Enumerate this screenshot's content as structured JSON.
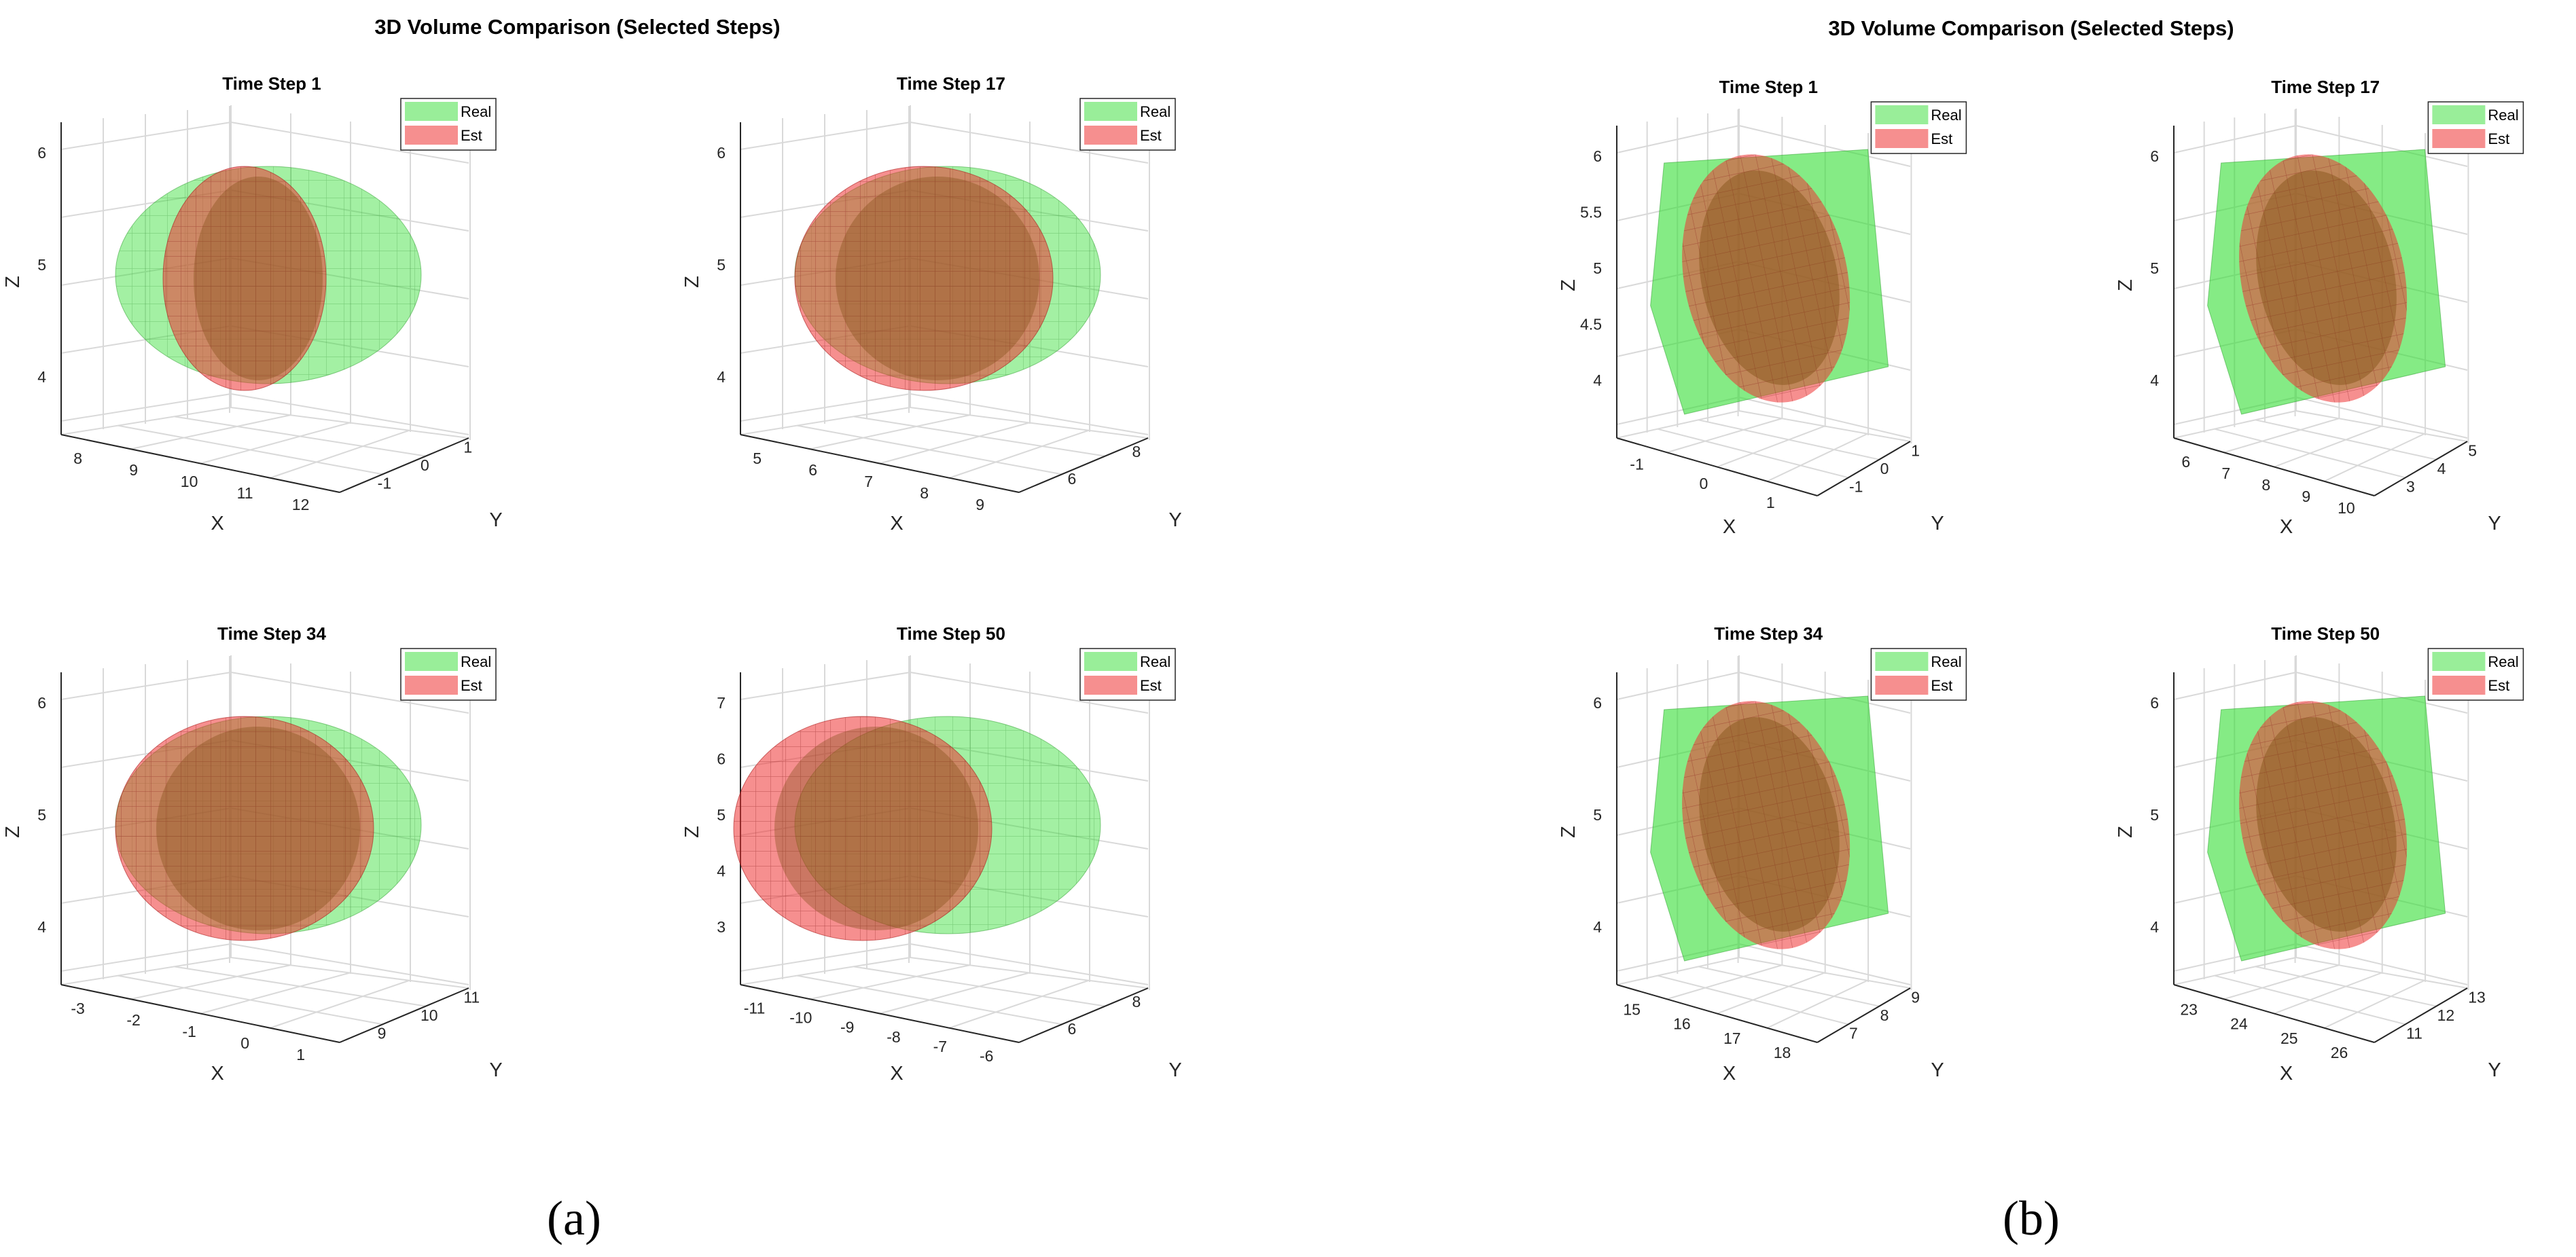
{
  "figures": [
    {
      "label": "(a)",
      "title": "3D Volume Comparison (Selected Steps)"
    },
    {
      "label": "(b)",
      "title": "3D Volume Comparison (Selected Steps)"
    }
  ],
  "legend": {
    "real": "Real",
    "est": "Est"
  },
  "colors": {
    "real": "#33dd33",
    "est": "#ee3333",
    "overlap": "#7a4a10",
    "axis": "#262626",
    "grid": "#d9d9d9"
  },
  "chart_data": [
    {
      "figure": "a",
      "type": "3d-surface",
      "title": "Time Step 1",
      "xlabel": "X",
      "ylabel": "Y",
      "zlabel": "Z",
      "xticks": [
        "8",
        "9",
        "10",
        "11",
        "12"
      ],
      "yticks": [
        "-1",
        "0",
        "1"
      ],
      "zticks": [
        "4",
        "5",
        "6"
      ],
      "series": [
        {
          "name": "Real",
          "shape": "ellipsoid"
        },
        {
          "name": "Est",
          "shape": "ellipsoid"
        }
      ]
    },
    {
      "figure": "a",
      "type": "3d-surface",
      "title": "Time Step 17",
      "xlabel": "X",
      "ylabel": "Y",
      "zlabel": "Z",
      "xticks": [
        "5",
        "6",
        "7",
        "8",
        "9"
      ],
      "yticks": [
        "6",
        "8"
      ],
      "zticks": [
        "4",
        "5",
        "6"
      ],
      "series": [
        {
          "name": "Real",
          "shape": "ellipsoid"
        },
        {
          "name": "Est",
          "shape": "ellipsoid"
        }
      ]
    },
    {
      "figure": "a",
      "type": "3d-surface",
      "title": "Time Step 34",
      "xlabel": "X",
      "ylabel": "Y",
      "zlabel": "Z",
      "xticks": [
        "-3",
        "-2",
        "-1",
        "0",
        "1"
      ],
      "yticks": [
        "9",
        "10",
        "11"
      ],
      "zticks": [
        "4",
        "5",
        "6"
      ],
      "series": [
        {
          "name": "Real",
          "shape": "ellipsoid"
        },
        {
          "name": "Est",
          "shape": "ellipsoid"
        }
      ]
    },
    {
      "figure": "a",
      "type": "3d-surface",
      "title": "Time Step 50",
      "xlabel": "X",
      "ylabel": "Y",
      "zlabel": "Z",
      "xticks": [
        "-11",
        "-10",
        "-9",
        "-8",
        "-7",
        "-6"
      ],
      "yticks": [
        "6",
        "8"
      ],
      "zticks": [
        "3",
        "4",
        "5",
        "6",
        "7"
      ],
      "series": [
        {
          "name": "Real",
          "shape": "ellipsoid"
        },
        {
          "name": "Est",
          "shape": "ellipsoid"
        }
      ]
    },
    {
      "figure": "b",
      "type": "3d-surface",
      "title": "Time Step 1",
      "xlabel": "X",
      "ylabel": "Y",
      "zlabel": "Z",
      "xticks": [
        "-1",
        "0",
        "1"
      ],
      "yticks": [
        "-1",
        "0",
        "1"
      ],
      "zticks": [
        "4",
        "4.5",
        "5",
        "5.5",
        "6"
      ],
      "series": [
        {
          "name": "Real",
          "shape": "polyhedron"
        },
        {
          "name": "Est",
          "shape": "ellipsoid"
        }
      ]
    },
    {
      "figure": "b",
      "type": "3d-surface",
      "title": "Time Step 17",
      "xlabel": "X",
      "ylabel": "Y",
      "zlabel": "Z",
      "xticks": [
        "6",
        "7",
        "8",
        "9",
        "10"
      ],
      "yticks": [
        "3",
        "4",
        "5"
      ],
      "zticks": [
        "4",
        "5",
        "6"
      ],
      "series": [
        {
          "name": "Real",
          "shape": "polyhedron"
        },
        {
          "name": "Est",
          "shape": "ellipsoid"
        }
      ]
    },
    {
      "figure": "b",
      "type": "3d-surface",
      "title": "Time Step 34",
      "xlabel": "X",
      "ylabel": "Y",
      "zlabel": "Z",
      "xticks": [
        "15",
        "16",
        "17",
        "18"
      ],
      "yticks": [
        "7",
        "8",
        "9"
      ],
      "zticks": [
        "4",
        "5",
        "6"
      ],
      "series": [
        {
          "name": "Real",
          "shape": "polyhedron"
        },
        {
          "name": "Est",
          "shape": "ellipsoid"
        }
      ]
    },
    {
      "figure": "b",
      "type": "3d-surface",
      "title": "Time Step 50",
      "xlabel": "X",
      "ylabel": "Y",
      "zlabel": "Z",
      "xticks": [
        "23",
        "24",
        "25",
        "26"
      ],
      "yticks": [
        "11",
        "12",
        "13"
      ],
      "zticks": [
        "4",
        "5",
        "6"
      ],
      "series": [
        {
          "name": "Real",
          "shape": "polyhedron"
        },
        {
          "name": "Est",
          "shape": "ellipsoid"
        }
      ]
    }
  ]
}
